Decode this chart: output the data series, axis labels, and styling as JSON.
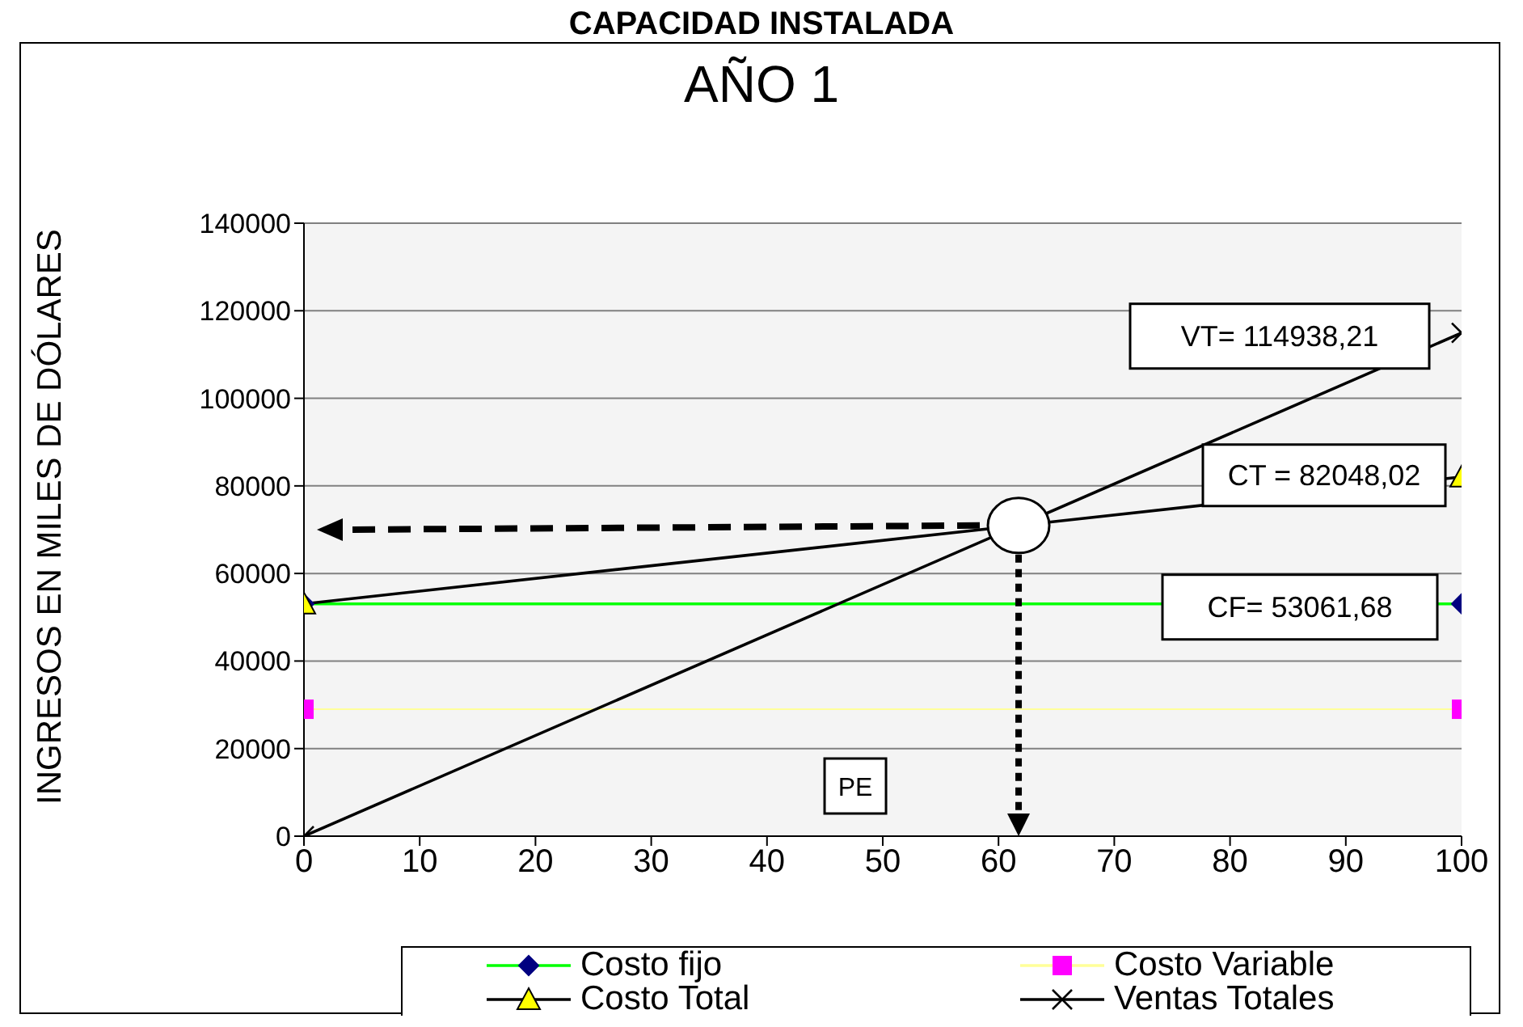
{
  "chart_data": {
    "type": "line",
    "title": "CAPACIDAD INSTALADA",
    "subtitle": "AÑO 1",
    "ylabel": "INGRESOS EN MILES DE DÓLARES",
    "x": [
      0,
      100
    ],
    "xlim": [
      0,
      100
    ],
    "xticks": [
      0,
      10,
      20,
      30,
      40,
      50,
      60,
      70,
      80,
      90,
      100
    ],
    "ylim": [
      0,
      140000
    ],
    "yticks": [
      0,
      20000,
      40000,
      60000,
      80000,
      100000,
      120000,
      140000
    ],
    "grid": "y",
    "legend": "bottom",
    "line_style": "solid",
    "series": [
      {
        "name": "Costo fijo",
        "color": "#00ff00",
        "colors": [
          "#000080",
          "#000080"
        ],
        "marker": "diamond",
        "values": [
          53061.68,
          53061.68
        ]
      },
      {
        "name": "Costo Variable",
        "color": "#ffff99",
        "colors": [
          "#ff00ff",
          "#ff00ff"
        ],
        "marker": "square",
        "values": [
          28986.34,
          28986.34
        ]
      },
      {
        "name": "Costo Total",
        "color": "#000000",
        "colors": [
          "#ffff00",
          "#ffff00"
        ],
        "marker": "triangle",
        "values": [
          53061.68,
          82048.02
        ]
      },
      {
        "name": "Ventas Totales",
        "color": "#000000",
        "colors": [
          "#000000",
          "#000000"
        ],
        "marker": "cross",
        "values": [
          0,
          114938.21
        ]
      }
    ],
    "annotations": [
      "VT= 114938,21",
      "CT = 82048,02",
      "CF= 53061,68",
      "PE"
    ]
  }
}
